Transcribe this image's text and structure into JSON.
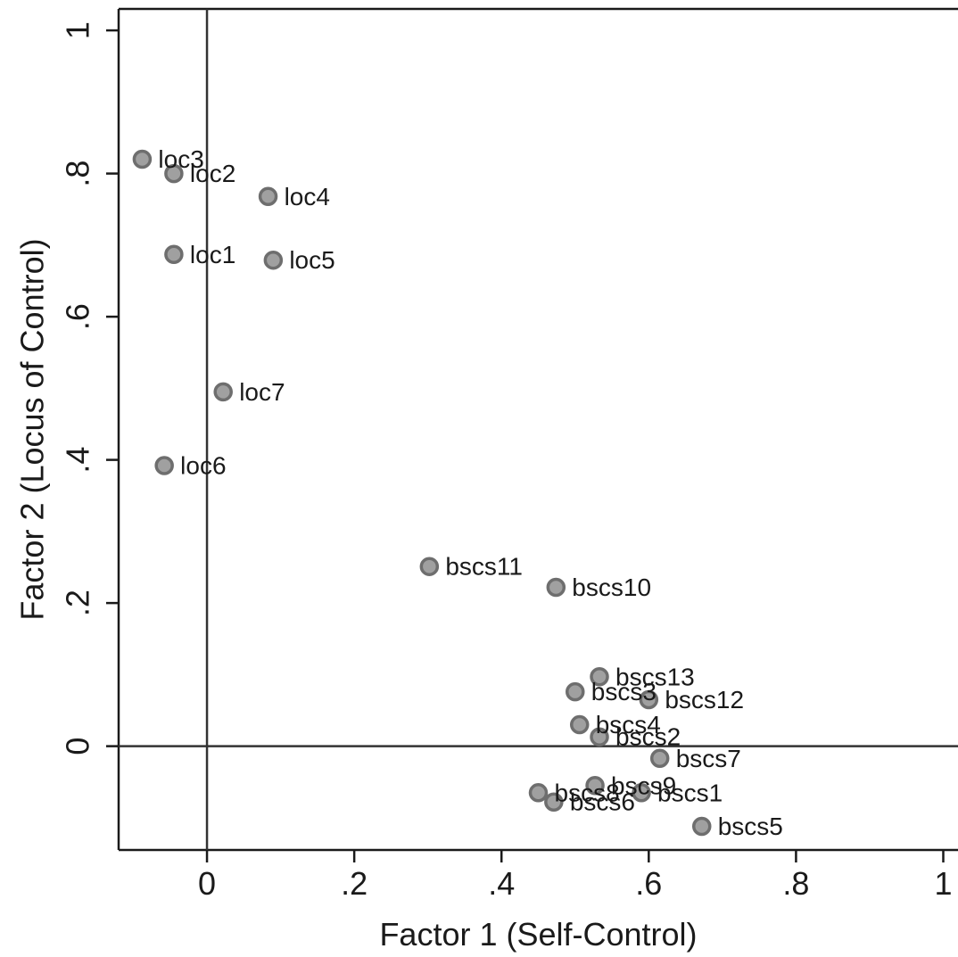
{
  "chart_data": {
    "type": "scatter",
    "title": "",
    "xlabel": "Factor 1 (Self-Control)",
    "ylabel": "Factor 2 (Locus of Control)",
    "xlim": [
      -0.12,
      1.02
    ],
    "ylim": [
      -0.145,
      1.03
    ],
    "x_ticks": [
      {
        "value": 0,
        "label": "0"
      },
      {
        "value": 0.2,
        "label": ".2"
      },
      {
        "value": 0.4,
        "label": ".4"
      },
      {
        "value": 0.6,
        "label": ".6"
      },
      {
        "value": 0.8,
        "label": ".8"
      },
      {
        "value": 1,
        "label": "1"
      }
    ],
    "y_ticks": [
      {
        "value": 0,
        "label": "0"
      },
      {
        "value": 0.2,
        "label": ".2"
      },
      {
        "value": 0.4,
        "label": ".4"
      },
      {
        "value": 0.6,
        "label": ".6"
      },
      {
        "value": 0.8,
        "label": ".8"
      },
      {
        "value": 1,
        "label": "1"
      }
    ],
    "reference_lines": {
      "x": 0,
      "y": 0
    },
    "grid": false,
    "legend": "none",
    "colors": {
      "marker_fill": "#a0a0a0",
      "marker_edge": "#6e6e6e",
      "axis": "#1a1a1a",
      "reference": "#333333"
    },
    "points": [
      {
        "label": "loc3",
        "x": -0.088,
        "y": 0.82
      },
      {
        "label": "loc2",
        "x": -0.045,
        "y": 0.8
      },
      {
        "label": "loc4",
        "x": 0.083,
        "y": 0.768
      },
      {
        "label": "loc1",
        "x": -0.045,
        "y": 0.687
      },
      {
        "label": "loc5",
        "x": 0.09,
        "y": 0.679
      },
      {
        "label": "loc7",
        "x": 0.022,
        "y": 0.495
      },
      {
        "label": "loc6",
        "x": -0.058,
        "y": 0.392
      },
      {
        "label": "bscs11",
        "x": 0.302,
        "y": 0.251
      },
      {
        "label": "bscs10",
        "x": 0.474,
        "y": 0.222
      },
      {
        "label": "bscs13",
        "x": 0.533,
        "y": 0.097
      },
      {
        "label": "bscs3",
        "x": 0.5,
        "y": 0.076
      },
      {
        "label": "bscs12",
        "x": 0.6,
        "y": 0.065
      },
      {
        "label": "bscs4",
        "x": 0.506,
        "y": 0.03
      },
      {
        "label": "bscs2",
        "x": 0.533,
        "y": 0.013
      },
      {
        "label": "bscs7",
        "x": 0.615,
        "y": -0.017
      },
      {
        "label": "bscs9",
        "x": 0.527,
        "y": -0.055
      },
      {
        "label": "bscs1",
        "x": 0.59,
        "y": -0.065
      },
      {
        "label": "bscs8",
        "x": 0.45,
        "y": -0.065
      },
      {
        "label": "bscs6",
        "x": 0.471,
        "y": -0.078
      },
      {
        "label": "bscs5",
        "x": 0.672,
        "y": -0.112
      }
    ]
  }
}
